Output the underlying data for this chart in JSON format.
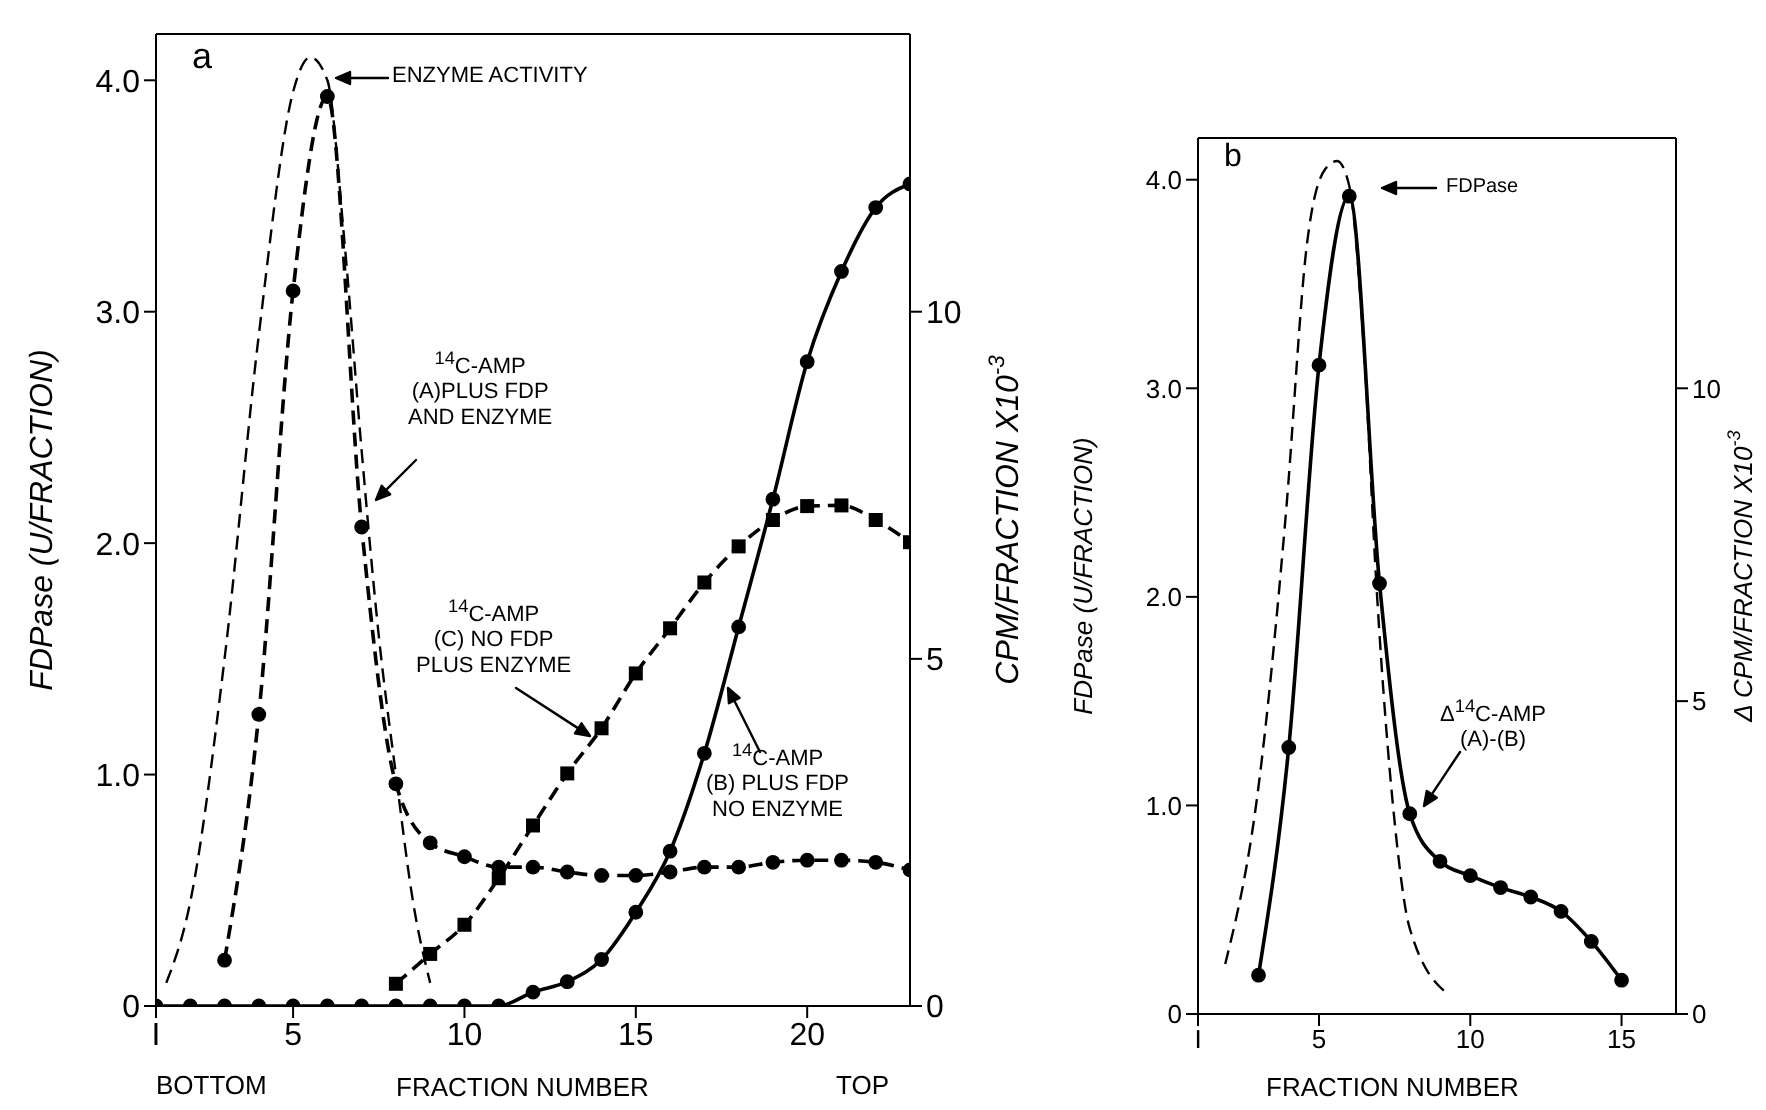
{
  "chart_data": [
    {
      "type": "line",
      "xlabel": "FRACTION NUMBER",
      "ylabel": "FDPase (U/FRACTION)",
      "y2label": "CPM/FRACTION X10$^{-3}$",
      "xlim": [
        1,
        23
      ],
      "xticks": [
        {
          "value": 1,
          "label": "I"
        },
        5,
        10,
        15,
        20
      ],
      "ylim": [
        0,
        4.2
      ],
      "yticks": [
        0,
        {
          "value": 1,
          "label": "1.0"
        },
        {
          "value": 2,
          "label": "2.0"
        },
        {
          "value": 3,
          "label": "3.0"
        },
        {
          "value": 4,
          "label": "4.0"
        }
      ],
      "y2lim": [
        0,
        14
      ],
      "y2ticks": [
        0,
        5,
        10
      ],
      "annotations": [
        "a",
        "ENZYME ACTIVITY",
        "$^{14}$C-AMP\n(A)PLUS FDP\nAND ENZYME",
        "$^{14}$C-AMP\n(C) NO FDP\nPLUS ENZYME",
        "$^{14}$C-AMP\n(B) PLUS FDP\nNO ENZYME",
        "BOTTOM",
        "TOP"
      ],
      "series": [
        {
          "color": "#000000",
          "line_style": "dashed",
          "marker": "none",
          "x": [
            1.3,
            2,
            3,
            4,
            5,
            5.5,
            6,
            6.5,
            7,
            7.5,
            8,
            8.5,
            9
          ],
          "values": [
            0.1,
            0.45,
            1.5,
            2.9,
            3.95,
            4.1,
            4.0,
            3.3,
            2.4,
            1.6,
            1.0,
            0.45,
            0.1
          ]
        },
        {
          "color": "#000000",
          "line_style": "dashed",
          "marker": "circle",
          "axis": "y2",
          "x": [
            3,
            4,
            5,
            6,
            7,
            8,
            9,
            10,
            11,
            12,
            13,
            14,
            15,
            16,
            17,
            18,
            19,
            20,
            21,
            22,
            23
          ],
          "values": [
            0.66,
            4.2,
            10.3,
            13.1,
            6.9,
            3.2,
            2.35,
            2.15,
            2.0,
            2.0,
            1.93,
            1.88,
            1.88,
            1.93,
            2.0,
            2.0,
            2.07,
            2.1,
            2.1,
            2.07,
            1.96
          ]
        },
        {
          "color": "#000000",
          "line_style": "dashed",
          "marker": "square",
          "axis": "y2",
          "x": [
            8,
            9,
            10,
            11,
            12,
            13,
            14,
            15,
            16,
            17,
            18,
            19,
            20,
            21,
            22,
            23
          ],
          "values": [
            0.32,
            0.75,
            1.17,
            1.84,
            2.6,
            3.35,
            4.0,
            4.79,
            5.44,
            6.1,
            6.62,
            7.0,
            7.2,
            7.21,
            7.0,
            6.68
          ]
        },
        {
          "color": "#000000",
          "line_style": "solid",
          "marker": "circle",
          "axis": "y2",
          "x": [
            1,
            2,
            3,
            4,
            5,
            6,
            7,
            8,
            9,
            10,
            11,
            12,
            13,
            14,
            15,
            16,
            17,
            18,
            19,
            20,
            21,
            22,
            23
          ],
          "values": [
            0,
            0,
            0,
            0,
            0,
            0,
            0,
            0,
            0,
            0,
            0,
            0.2,
            0.35,
            0.67,
            1.35,
            2.23,
            3.64,
            5.46,
            7.3,
            9.28,
            10.58,
            11.5,
            11.84
          ]
        }
      ]
    },
    {
      "type": "line",
      "xlabel": "FRACTION NUMBER",
      "ylabel": "FDPase (U/FRACTION)",
      "y2label": "Δ CPM/FRACTION X10$^{-3}$",
      "xlim": [
        1,
        16.8
      ],
      "xticks": [
        {
          "value": 1,
          "label": "I"
        },
        5,
        10,
        15
      ],
      "ylim": [
        0,
        4.2
      ],
      "yticks": [
        0,
        {
          "value": 1,
          "label": "1.0"
        },
        {
          "value": 2,
          "label": "2.0"
        },
        {
          "value": 3,
          "label": "3.0"
        },
        {
          "value": 4,
          "label": "4.0"
        }
      ],
      "y2lim": [
        0,
        14
      ],
      "y2ticks": [
        0,
        5,
        10
      ],
      "annotations": [
        "b",
        "FDPase",
        "Δ$^{14}$C-AMP\n(A)-(B)"
      ],
      "series": [
        {
          "color": "#000000",
          "line_style": "dashed",
          "marker": "none",
          "x": [
            1.9,
            3,
            3.9,
            4.6,
            5.2,
            5.6,
            6,
            6.5,
            6.9,
            7.5,
            8,
            9.3
          ],
          "values": [
            0.24,
            1.09,
            2.39,
            3.69,
            4.05,
            4.09,
            3.97,
            3.15,
            2.05,
            0.92,
            0.41,
            0.09
          ]
        },
        {
          "color": "#000000",
          "line_style": "solid",
          "marker": "circle",
          "axis": "y2",
          "x": [
            3,
            4,
            5,
            6,
            7,
            8,
            9,
            10,
            11,
            12,
            13,
            14,
            15
          ],
          "values": [
            0.62,
            4.26,
            10.37,
            13.07,
            6.88,
            3.2,
            2.44,
            2.21,
            2.02,
            1.87,
            1.64,
            1.16,
            0.54
          ]
        }
      ]
    }
  ]
}
